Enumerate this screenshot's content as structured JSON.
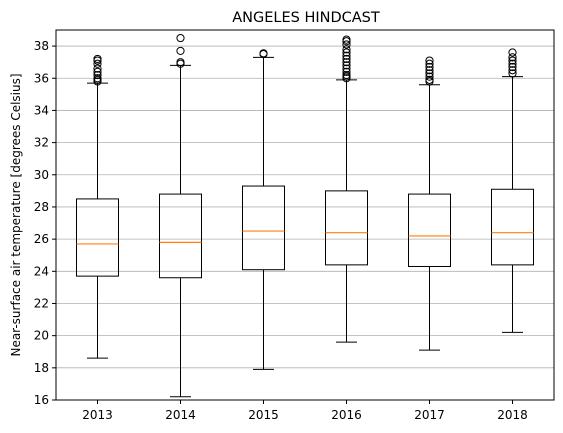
{
  "chart_data": {
    "type": "box",
    "title": "ANGELES HINDCAST",
    "xlabel": "",
    "ylabel": "Near-surface air temperature [degrees Celsius]",
    "ylim": [
      16,
      39
    ],
    "yticks": [
      16,
      18,
      20,
      22,
      24,
      26,
      28,
      30,
      32,
      34,
      36,
      38
    ],
    "grid": {
      "y": true,
      "x": false
    },
    "categories": [
      "2013",
      "2014",
      "2015",
      "2016",
      "2017",
      "2018"
    ],
    "boxes": [
      {
        "whislo": 18.6,
        "q1": 23.7,
        "med": 25.7,
        "q3": 28.5,
        "whishi": 35.7,
        "fliers": [
          35.8,
          35.9,
          36.0,
          36.2,
          36.4,
          36.6,
          36.9,
          37.1,
          37.2
        ]
      },
      {
        "whislo": 16.2,
        "q1": 23.6,
        "med": 25.8,
        "q3": 28.8,
        "whishi": 36.8,
        "fliers": [
          36.9,
          37.0,
          37.7,
          38.5
        ]
      },
      {
        "whislo": 17.9,
        "q1": 24.1,
        "med": 26.5,
        "q3": 29.3,
        "whishi": 37.3,
        "fliers": [
          37.5,
          37.55
        ]
      },
      {
        "whislo": 19.6,
        "q1": 24.4,
        "med": 26.4,
        "q3": 29.0,
        "whishi": 35.9,
        "fliers": [
          36.0,
          36.1,
          36.2,
          36.4,
          36.6,
          36.8,
          37.0,
          37.2,
          37.4,
          37.6,
          37.8,
          38.1,
          38.3,
          38.4
        ]
      },
      {
        "whislo": 19.1,
        "q1": 24.3,
        "med": 26.2,
        "q3": 28.8,
        "whishi": 35.6,
        "fliers": [
          35.8,
          35.9,
          36.1,
          36.3,
          36.5,
          36.7,
          36.9,
          37.1
        ]
      },
      {
        "whislo": 20.2,
        "q1": 24.4,
        "med": 26.4,
        "q3": 29.1,
        "whishi": 36.1,
        "fliers": [
          36.3,
          36.5,
          36.7,
          36.9,
          37.1,
          37.3,
          37.6
        ]
      }
    ],
    "colors": {
      "box": "#000000",
      "median": "#ff7f0e",
      "grid": "#b0b0b0"
    }
  }
}
